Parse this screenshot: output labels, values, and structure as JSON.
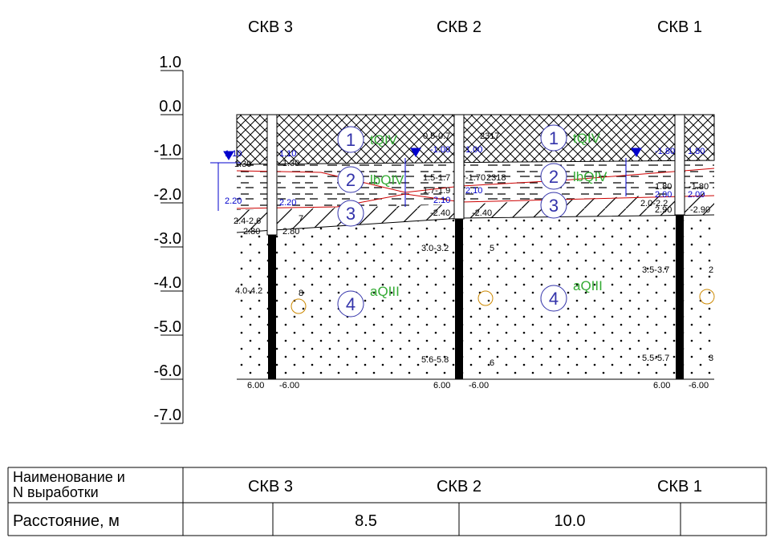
{
  "well_labels": [
    "СКВ 3",
    "СКВ 2",
    "СКВ 1"
  ],
  "elevations": [
    "1.0",
    "0.0",
    "-1.0",
    "-2.0",
    "-3.0",
    "-4.0",
    "-5.0",
    "-6.0",
    "-7.0"
  ],
  "layers": [
    {
      "number": "1",
      "index": "tQIV"
    },
    {
      "number": "2",
      "index": "lbQIV"
    },
    {
      "number": "3"
    },
    {
      "number": "4",
      "index": "aQIII"
    }
  ],
  "annotations": [
    "1.10",
    "1.30",
    "2.20",
    "2.4-2.6",
    "2.80",
    "4.0-4.2",
    "6.00",
    "1.10",
    "1.30",
    "2.20",
    "2.80",
    "7",
    "8",
    "-6.00",
    "0.5-0.7",
    "-1.00",
    "1.5-1.7",
    "1.7-1.9",
    "2.10",
    "-2.40",
    "3.0-3.2",
    "5.6-5.8",
    "6.00",
    "2317",
    "1.00",
    "-1.70",
    "2318",
    "2.10",
    "-2.40",
    "5",
    "6",
    "-6.00",
    "-1.80",
    "1.80",
    "2.00",
    "2.0-2.2",
    "2.90",
    "3.5-3.7",
    "5.5-5.7",
    "6.00",
    "1.80",
    "-1.80",
    "2.00",
    "-2.90",
    "2",
    "3",
    "-6.00"
  ],
  "table": {
    "header": [
      "Наименование и",
      "N выработки"
    ],
    "wells": [
      "СКВ 3",
      "СКВ 2",
      "СКВ 1"
    ],
    "distance_label": "Расстояние, м",
    "distances": [
      "8.5",
      "10.0"
    ]
  }
}
